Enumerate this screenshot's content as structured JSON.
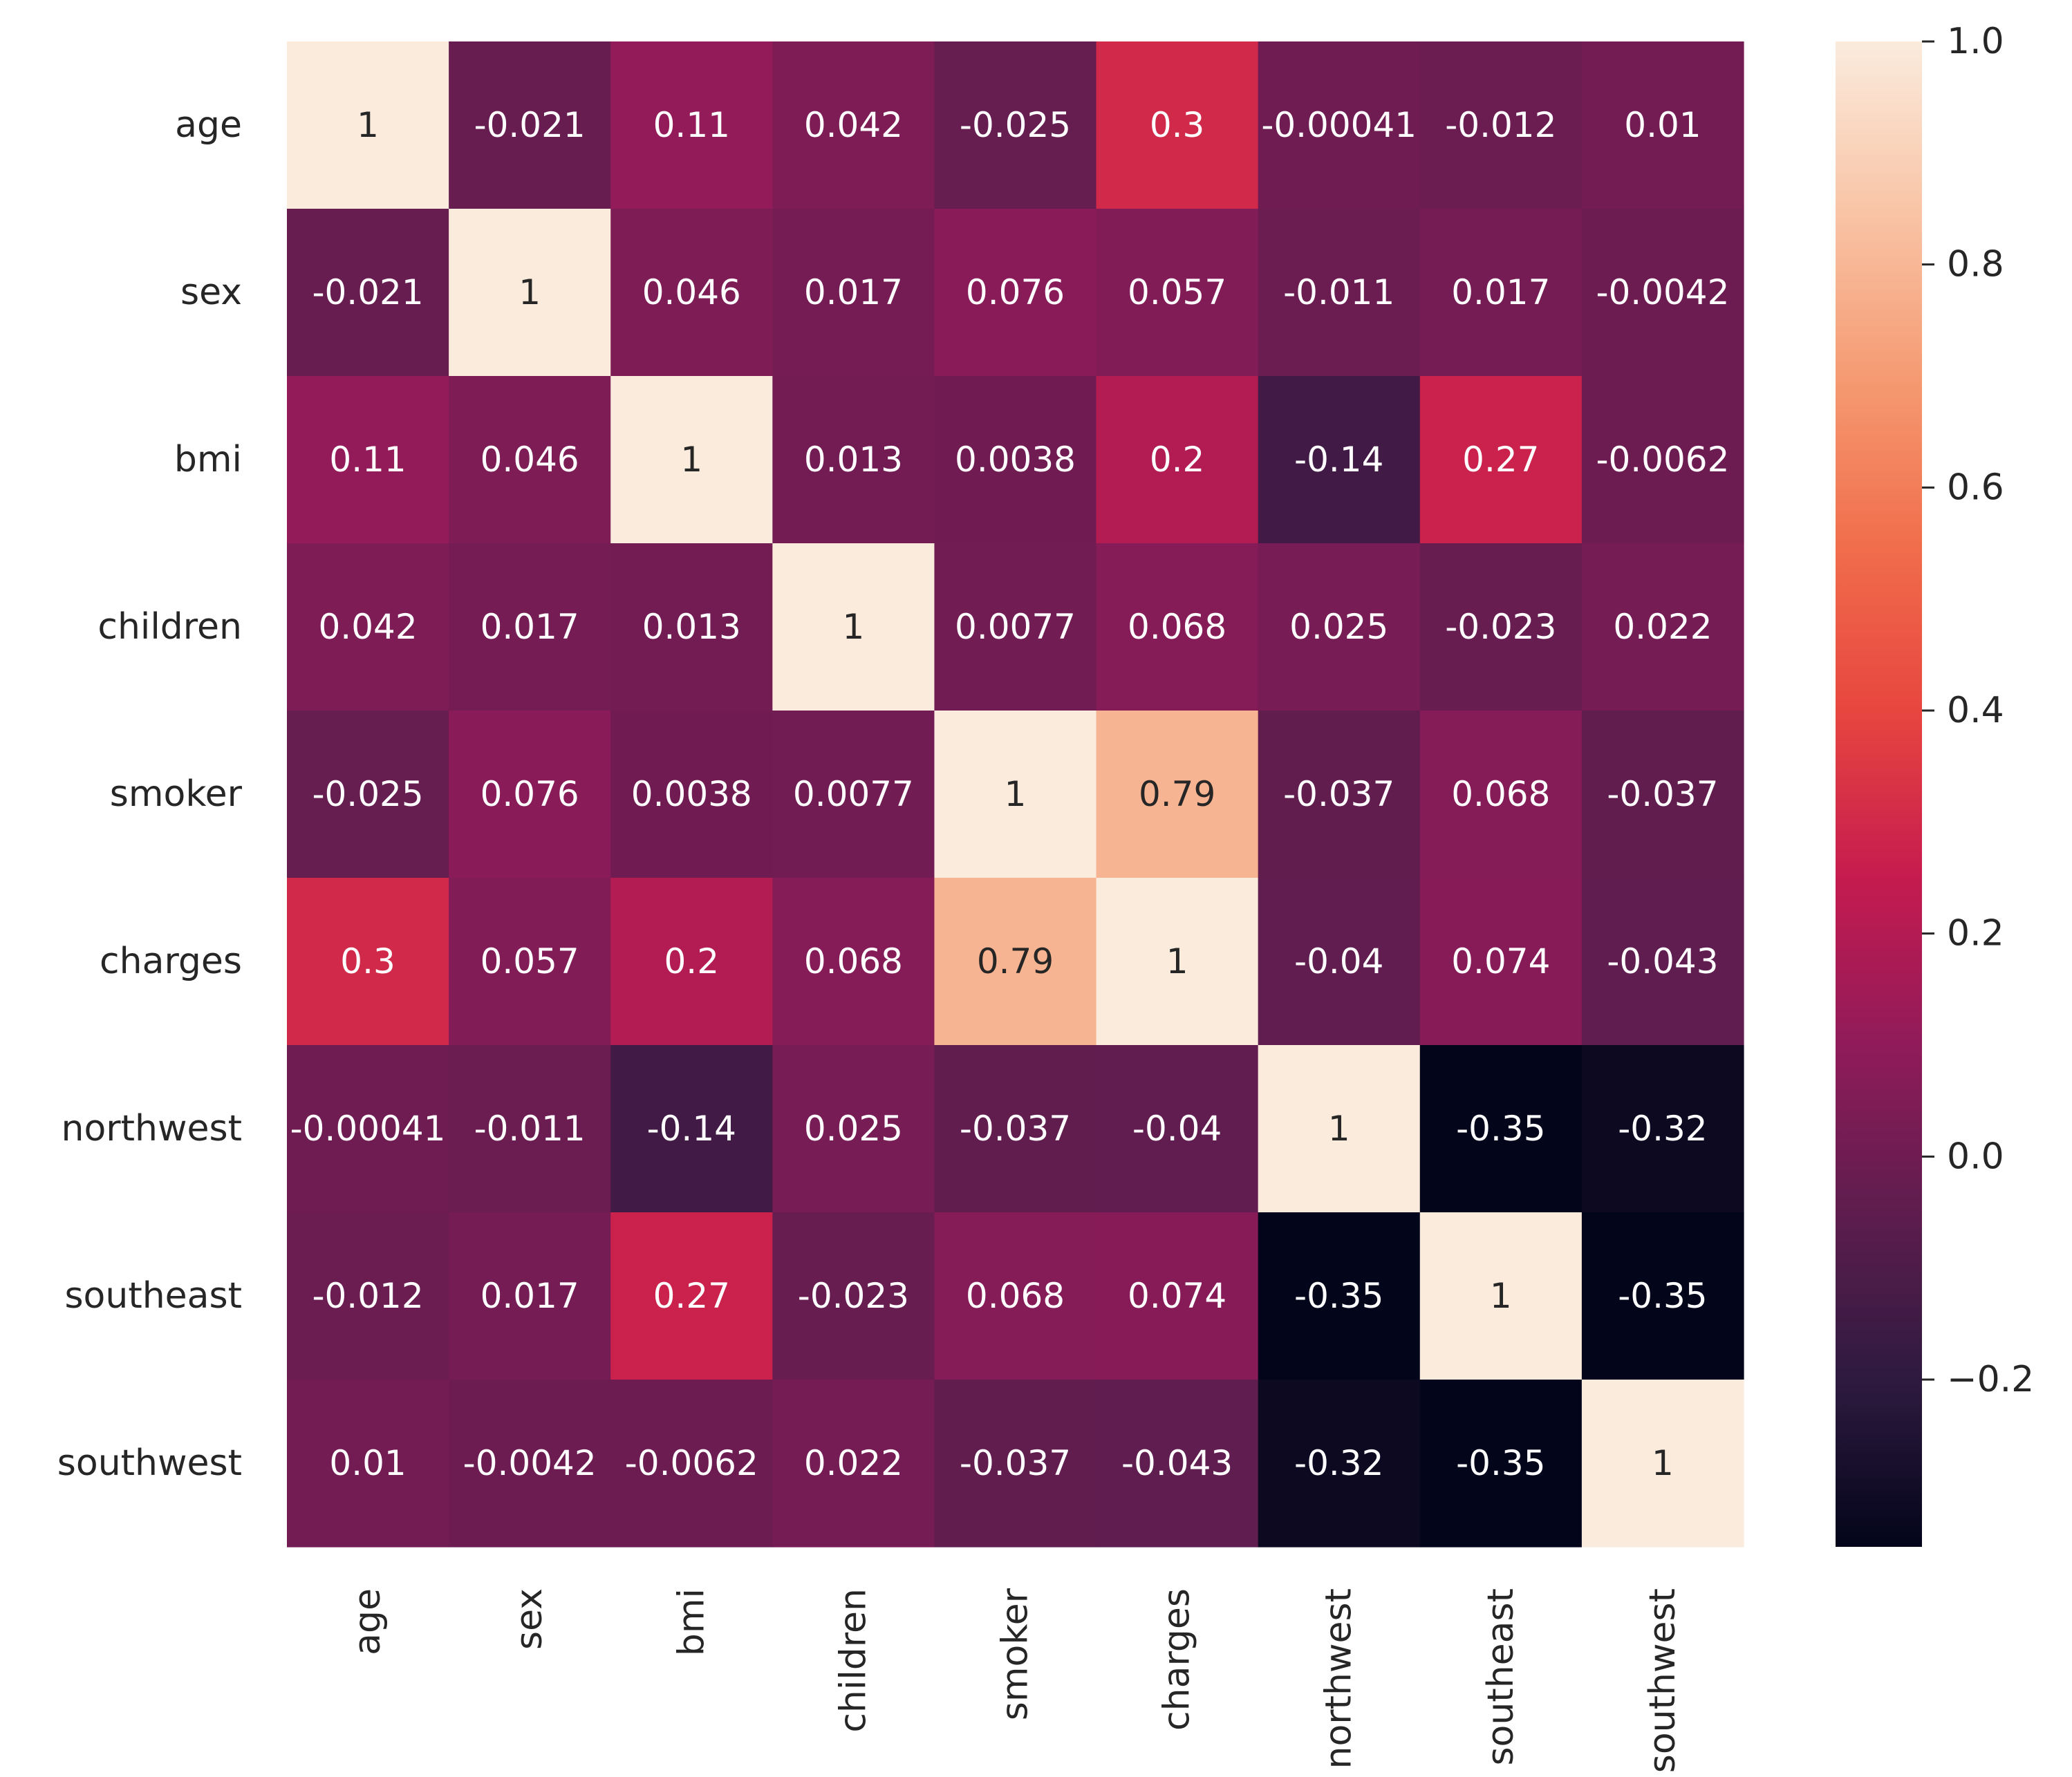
{
  "chart_data": {
    "type": "heatmap",
    "title": "",
    "xlabel": "",
    "ylabel": "",
    "rows": [
      "age",
      "sex",
      "bmi",
      "children",
      "smoker",
      "charges",
      "northwest",
      "southeast",
      "southwest"
    ],
    "columns": [
      "age",
      "sex",
      "bmi",
      "children",
      "smoker",
      "charges",
      "northwest",
      "southeast",
      "southwest"
    ],
    "values": [
      [
        1,
        -0.021,
        0.11,
        0.042,
        -0.025,
        0.3,
        -0.00041,
        -0.012,
        0.01
      ],
      [
        -0.021,
        1,
        0.046,
        0.017,
        0.076,
        0.057,
        -0.011,
        0.017,
        -0.0042
      ],
      [
        0.11,
        0.046,
        1,
        0.013,
        0.0038,
        0.2,
        -0.14,
        0.27,
        -0.0062
      ],
      [
        0.042,
        0.017,
        0.013,
        1,
        0.0077,
        0.068,
        0.025,
        -0.023,
        0.022
      ],
      [
        -0.025,
        0.076,
        0.0038,
        0.0077,
        1,
        0.79,
        -0.037,
        0.068,
        -0.037
      ],
      [
        0.3,
        0.057,
        0.2,
        0.068,
        0.79,
        1,
        -0.04,
        0.074,
        -0.043
      ],
      [
        -0.00041,
        -0.011,
        -0.14,
        0.025,
        -0.037,
        -0.04,
        1,
        -0.35,
        -0.32
      ],
      [
        -0.012,
        0.017,
        0.27,
        -0.023,
        0.068,
        0.074,
        -0.35,
        1,
        -0.35
      ],
      [
        0.01,
        -0.0042,
        -0.0062,
        0.022,
        -0.037,
        -0.043,
        -0.32,
        -0.35,
        1
      ]
    ],
    "annotations": [
      [
        "1",
        "-0.021",
        "0.11",
        "0.042",
        "-0.025",
        "0.3",
        "-0.00041",
        "-0.012",
        "0.01"
      ],
      [
        "-0.021",
        "1",
        "0.046",
        "0.017",
        "0.076",
        "0.057",
        "-0.011",
        "0.017",
        "-0.0042"
      ],
      [
        "0.11",
        "0.046",
        "1",
        "0.013",
        "0.0038",
        "0.2",
        "-0.14",
        "0.27",
        "-0.0062"
      ],
      [
        "0.042",
        "0.017",
        "0.013",
        "1",
        "0.0077",
        "0.068",
        "0.025",
        "-0.023",
        "0.022"
      ],
      [
        "-0.025",
        "0.076",
        "0.0038",
        "0.0077",
        "1",
        "0.79",
        "-0.037",
        "0.068",
        "-0.037"
      ],
      [
        "0.3",
        "0.057",
        "0.2",
        "0.068",
        "0.79",
        "1",
        "-0.04",
        "0.074",
        "-0.043"
      ],
      [
        "-0.00041",
        "-0.011",
        "-0.14",
        "0.025",
        "-0.037",
        "-0.04",
        "1",
        "-0.35",
        "-0.32"
      ],
      [
        "-0.012",
        "0.017",
        "0.27",
        "-0.023",
        "0.068",
        "0.074",
        "-0.35",
        "1",
        "-0.35"
      ],
      [
        "0.01",
        "-0.0042",
        "-0.0062",
        "0.022",
        "-0.037",
        "-0.043",
        "-0.32",
        "-0.35",
        "1"
      ]
    ],
    "colorbar": {
      "vmin": -0.35,
      "vmax": 1.0,
      "ticks": [
        -0.2,
        0.0,
        0.2,
        0.4,
        0.6,
        0.8,
        1.0
      ],
      "tick_labels": [
        "−0.2",
        "0.0",
        "0.2",
        "0.4",
        "0.6",
        "0.8",
        "1.0"
      ],
      "placement": "right",
      "colormap": "rocket",
      "colormap_stops": [
        "#03051a",
        "#2e1a3f",
        "#5e1d4e",
        "#901b5a",
        "#c51b4f",
        "#e7463f",
        "#f16e4c",
        "#f59b73",
        "#f9c5a7",
        "#faebdd"
      ]
    },
    "text_colors": {
      "light": "#ffffff",
      "dark": "#262626"
    },
    "grid": false
  }
}
